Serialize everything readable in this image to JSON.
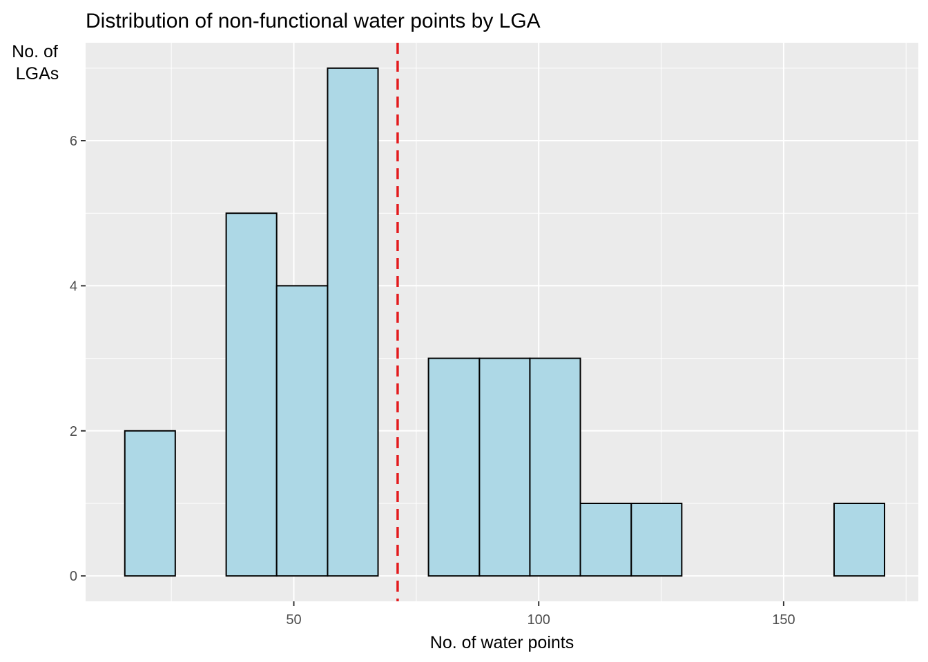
{
  "chart_data": {
    "type": "bar",
    "title": "Distribution of non-functional water points by LGA",
    "xlabel": "No. of water points",
    "ylabel_lines": [
      "No. of",
      "LGAs"
    ],
    "xlim": [
      7.5,
      177.5
    ],
    "ylim": [
      -0.35,
      7.35
    ],
    "x_ticks": [
      50,
      100,
      150
    ],
    "y_ticks": [
      0,
      2,
      4,
      6
    ],
    "bins": [
      {
        "x0": 15.5,
        "x1": 25.8,
        "count": 2
      },
      {
        "x0": 25.8,
        "x1": 36.2,
        "count": 0
      },
      {
        "x0": 36.2,
        "x1": 46.5,
        "count": 5
      },
      {
        "x0": 46.5,
        "x1": 56.9,
        "count": 4
      },
      {
        "x0": 56.9,
        "x1": 67.2,
        "count": 7
      },
      {
        "x0": 67.2,
        "x1": 77.5,
        "count": 0
      },
      {
        "x0": 77.5,
        "x1": 87.9,
        "count": 3
      },
      {
        "x0": 87.9,
        "x1": 98.2,
        "count": 3
      },
      {
        "x0": 98.2,
        "x1": 108.5,
        "count": 3
      },
      {
        "x0": 108.5,
        "x1": 118.9,
        "count": 1
      },
      {
        "x0": 118.9,
        "x1": 129.2,
        "count": 1
      },
      {
        "x0": 129.2,
        "x1": 139.6,
        "count": 0
      },
      {
        "x0": 139.6,
        "x1": 149.9,
        "count": 0
      },
      {
        "x0": 149.9,
        "x1": 160.3,
        "count": 0
      },
      {
        "x0": 160.3,
        "x1": 170.6,
        "count": 1
      }
    ],
    "mean_line": {
      "x": 71.2,
      "color": "#e31a1c",
      "style": "dashed"
    },
    "bar_fill": "#add8e6",
    "bar_outline": "#000000",
    "panel_background": "#ebebeb",
    "grid": true
  }
}
